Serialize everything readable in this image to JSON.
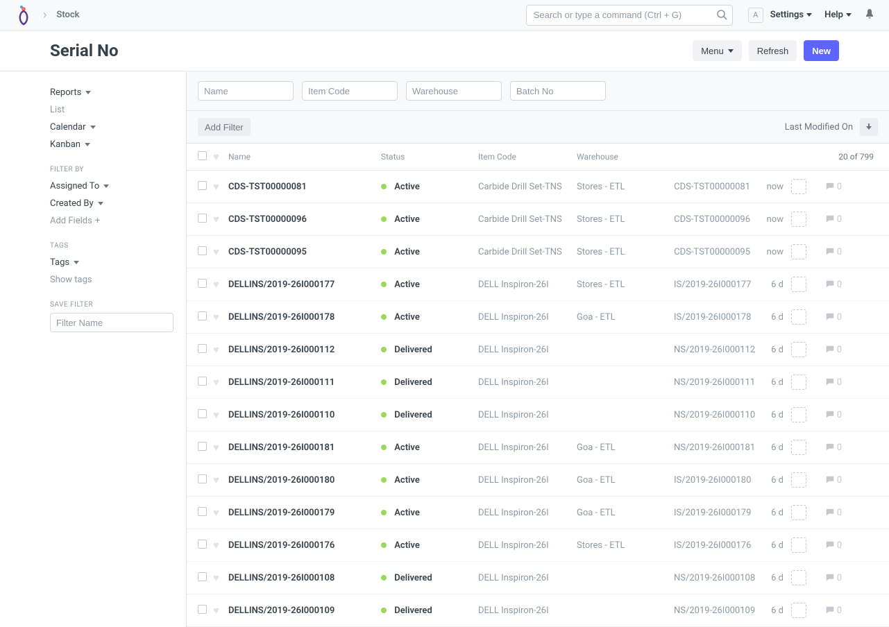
{
  "navbar": {
    "breadcrumb": "Stock",
    "search_placeholder": "Search or type a command (Ctrl + G)",
    "user_initial": "A",
    "settings_label": "Settings",
    "help_label": "Help"
  },
  "page": {
    "title": "Serial No",
    "menu_label": "Menu",
    "refresh_label": "Refresh",
    "new_label": "New"
  },
  "sidebar": {
    "views": {
      "reports": "Reports",
      "list": "List",
      "calendar": "Calendar",
      "kanban": "Kanban"
    },
    "filter_by_label": "FILTER BY",
    "assigned_to": "Assigned To",
    "created_by": "Created By",
    "add_fields": "Add Fields",
    "tags_label": "TAGS",
    "tags": "Tags",
    "show_tags": "Show tags",
    "save_filter_label": "SAVE FILTER",
    "filter_name_placeholder": "Filter Name"
  },
  "filters": {
    "name_placeholder": "Name",
    "item_code_placeholder": "Item Code",
    "warehouse_placeholder": "Warehouse",
    "batch_no_placeholder": "Batch No",
    "add_filter_label": "Add Filter",
    "sort_label": "Last Modified On"
  },
  "columns": {
    "name": "Name",
    "status": "Status",
    "item_code": "Item Code",
    "warehouse": "Warehouse",
    "paging": "20 of 799"
  },
  "status_color": "#98d85b",
  "rows": [
    {
      "name": "CDS-TST00000081",
      "status": "Active",
      "item": "Carbide Drill Set-TNS",
      "warehouse": "Stores - ETL",
      "serial": "CDS-TST00000081",
      "time": "now",
      "comments": "0"
    },
    {
      "name": "CDS-TST00000096",
      "status": "Active",
      "item": "Carbide Drill Set-TNS",
      "warehouse": "Stores - ETL",
      "serial": "CDS-TST00000096",
      "time": "now",
      "comments": "0"
    },
    {
      "name": "CDS-TST00000095",
      "status": "Active",
      "item": "Carbide Drill Set-TNS",
      "warehouse": "Stores - ETL",
      "serial": "CDS-TST00000095",
      "time": "now",
      "comments": "0"
    },
    {
      "name": "DELLINS/2019-26I000177",
      "status": "Active",
      "item": "DELL Inspiron-26I",
      "warehouse": "Stores - ETL",
      "serial": "IS/2019-26I000177",
      "time": "6 d",
      "comments": "0"
    },
    {
      "name": "DELLINS/2019-26I000178",
      "status": "Active",
      "item": "DELL Inspiron-26I",
      "warehouse": "Goa - ETL",
      "serial": "IS/2019-26I000178",
      "time": "6 d",
      "comments": "0"
    },
    {
      "name": "DELLINS/2019-26I000112",
      "status": "Delivered",
      "item": "DELL Inspiron-26I",
      "warehouse": "",
      "serial": "NS/2019-26I000112",
      "time": "6 d",
      "comments": "0"
    },
    {
      "name": "DELLINS/2019-26I000111",
      "status": "Delivered",
      "item": "DELL Inspiron-26I",
      "warehouse": "",
      "serial": "NS/2019-26I000111",
      "time": "6 d",
      "comments": "0"
    },
    {
      "name": "DELLINS/2019-26I000110",
      "status": "Delivered",
      "item": "DELL Inspiron-26I",
      "warehouse": "",
      "serial": "NS/2019-26I000110",
      "time": "6 d",
      "comments": "0"
    },
    {
      "name": "DELLINS/2019-26I000181",
      "status": "Active",
      "item": "DELL Inspiron-26I",
      "warehouse": "Goa - ETL",
      "serial": "NS/2019-26I000181",
      "time": "6 d",
      "comments": "0"
    },
    {
      "name": "DELLINS/2019-26I000180",
      "status": "Active",
      "item": "DELL Inspiron-26I",
      "warehouse": "Goa - ETL",
      "serial": "IS/2019-26I000180",
      "time": "6 d",
      "comments": "0"
    },
    {
      "name": "DELLINS/2019-26I000179",
      "status": "Active",
      "item": "DELL Inspiron-26I",
      "warehouse": "Goa - ETL",
      "serial": "IS/2019-26I000179",
      "time": "6 d",
      "comments": "0"
    },
    {
      "name": "DELLINS/2019-26I000176",
      "status": "Active",
      "item": "DELL Inspiron-26I",
      "warehouse": "Stores - ETL",
      "serial": "IS/2019-26I000176",
      "time": "6 d",
      "comments": "0"
    },
    {
      "name": "DELLINS/2019-26I000108",
      "status": "Delivered",
      "item": "DELL Inspiron-26I",
      "warehouse": "",
      "serial": "NS/2019-26I000108",
      "time": "6 d",
      "comments": "0"
    },
    {
      "name": "DELLINS/2019-26I000109",
      "status": "Delivered",
      "item": "DELL Inspiron-26I",
      "warehouse": "",
      "serial": "NS/2019-26I000109",
      "time": "6 d",
      "comments": "0"
    }
  ]
}
